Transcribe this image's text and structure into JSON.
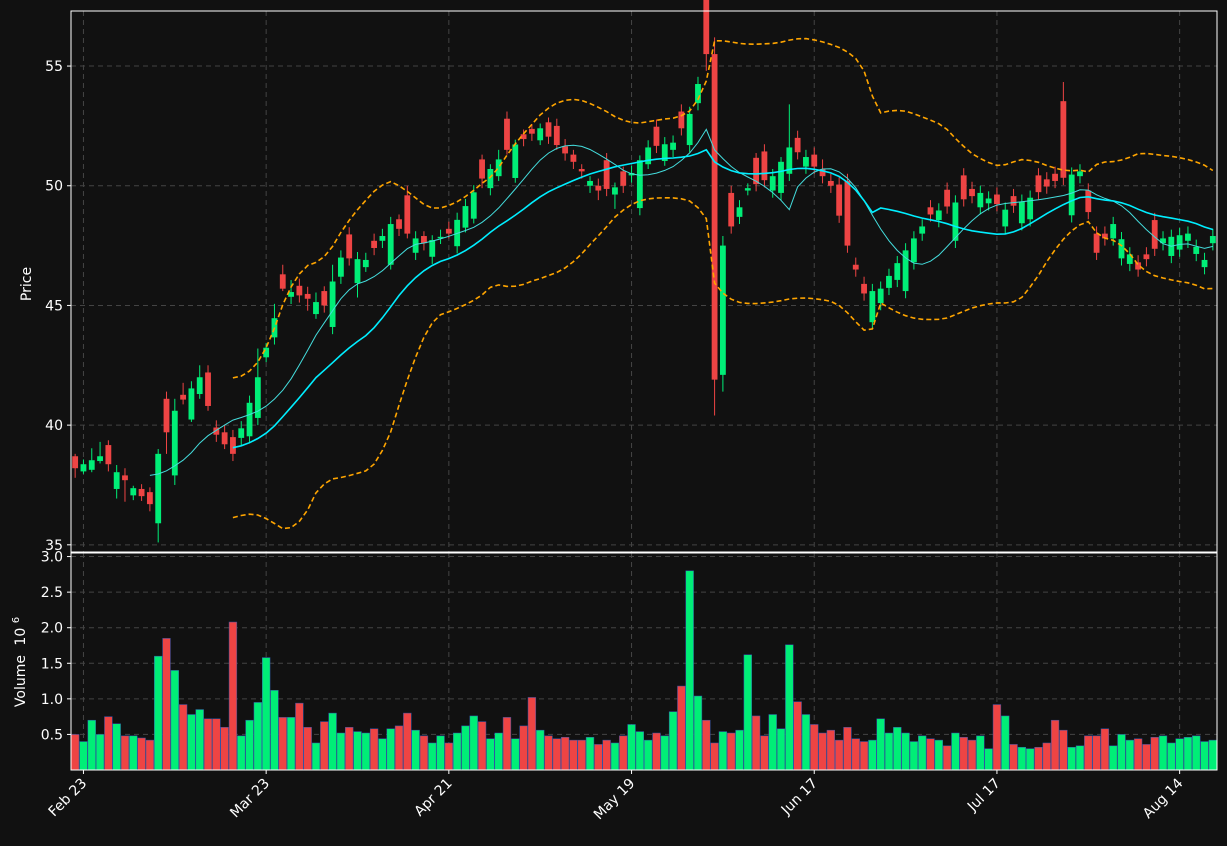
{
  "colors": {
    "background": "#111111",
    "up": "#00ee77",
    "down": "#ee4444",
    "sma_fast": "#44dddd",
    "sma_slow": "#00eeff",
    "bollinger": "#ffa500",
    "grid": "#444444",
    "text": "#ffffff"
  },
  "chart_data": [
    {
      "type": "candlestick",
      "panel": "price",
      "ylabel": "Price",
      "ylim": [
        34.7,
        57.3
      ],
      "yticks": [
        35,
        40,
        45,
        50,
        55
      ],
      "grid": true,
      "xtick_labels": [
        "Feb 23",
        "Mar 23",
        "Apr 21",
        "May 19",
        "Jun 17",
        "Jul 17",
        "Aug 14"
      ],
      "xtick_index": [
        1,
        23,
        45,
        67,
        89,
        111,
        133
      ],
      "n": 138,
      "moves": [
        [
          0.0,
          -0.5,
          0.1,
          -0.4
        ],
        [
          0.0,
          0.3,
          0.2,
          -0.1
        ],
        [
          0.2,
          0.4,
          0.5,
          -0.1
        ],
        [
          0.2,
          0.2,
          0.6,
          -0.1
        ],
        [
          0.0,
          -0.8,
          0.2,
          -0.3
        ],
        [
          -0.2,
          0.7,
          0.3,
          -0.4
        ],
        [
          -0.2,
          -0.2,
          0.3,
          -0.9
        ],
        [
          0.0,
          0.3,
          0.1,
          -0.2
        ],
        [
          0.0,
          -0.3,
          0.2,
          -0.2
        ],
        [
          -0.6,
          -0.5,
          0.2,
          -0.3
        ],
        [
          -0.2,
          2.9,
          0.2,
          -0.8
        ],
        [
          0.0,
          -1.4,
          0.3,
          -0.9
        ],
        [
          0.0,
          2.7,
          0.5,
          -0.4
        ],
        [
          0.0,
          -0.2,
          0.5,
          -0.2
        ],
        [
          0.0,
          1.3,
          0.3,
          -0.1
        ],
        [
          0.2,
          0.7,
          0.5,
          -0.2
        ],
        [
          0.0,
          -1.4,
          0.3,
          -0.2
        ],
        [
          -0.8,
          -0.3,
          0.3,
          -0.3
        ],
        [
          -0.2,
          -0.5,
          0.3,
          -0.2
        ],
        [
          0.0,
          -0.7,
          0.3,
          -0.3
        ],
        [
          0.0,
          0.4,
          0.3,
          -0.3
        ],
        [
          0.0,
          1.4,
          0.3,
          -0.3
        ],
        [
          0.0,
          1.7,
          1.2,
          -0.3
        ],
        [
          0.0,
          0.4,
          0.2,
          -0.2
        ],
        [
          0.0,
          0.8,
          0.6,
          -0.3
        ],
        [
          0.0,
          -0.6,
          0.4,
          -0.1
        ],
        [
          0.0,
          0.2,
          0.5,
          -0.3
        ],
        [
          0.0,
          -0.4,
          0.3,
          -0.3
        ],
        [
          0.0,
          -0.2,
          0.3,
          -0.5
        ],
        [
          0.0,
          0.5,
          0.4,
          -0.2
        ],
        [
          -0.2,
          -0.6,
          0.2,
          -0.3
        ],
        [
          -0.2,
          1.9,
          0.7,
          -0.3
        ],
        [
          0.0,
          0.8,
          0.3,
          -0.3
        ],
        [
          0.0,
          -1.0,
          0.3,
          -0.3
        ],
        [
          0.0,
          1.0,
          0.3,
          -0.6
        ],
        [
          0.0,
          0.3,
          0.3,
          -0.2
        ],
        [
          0.0,
          -0.3,
          0.3,
          -0.3
        ],
        [
          0.0,
          0.2,
          0.3,
          -0.3
        ],
        [
          0.0,
          1.7,
          0.3,
          -0.2
        ],
        [
          0.0,
          -0.4,
          0.2,
          -0.3
        ],
        [
          0.0,
          -1.6,
          0.4,
          -0.2
        ],
        [
          0.0,
          0.6,
          0.3,
          -0.3
        ],
        [
          0.0,
          -0.3,
          0.2,
          -0.3
        ],
        [
          0.0,
          0.7,
          0.2,
          -0.3
        ],
        [
          0.0,
          0.0,
          0.3,
          -0.3
        ],
        [
          0.0,
          -0.2,
          0.3,
          -0.2
        ],
        [
          0.0,
          1.1,
          0.3,
          -0.3
        ],
        [
          0.0,
          0.9,
          0.3,
          -0.2
        ],
        [
          0.0,
          1.1,
          0.3,
          -0.2
        ],
        [
          0.0,
          -0.8,
          0.2,
          -0.4
        ],
        [
          0.0,
          0.8,
          0.2,
          -0.3
        ],
        [
          0.0,
          0.7,
          0.4,
          -0.2
        ],
        [
          0.0,
          -1.3,
          0.3,
          -0.2
        ],
        [
          0.0,
          1.4,
          0.2,
          -0.2
        ],
        [
          0.0,
          -0.2,
          0.2,
          -0.3
        ],
        [
          0.0,
          -0.2,
          0.2,
          -0.3
        ],
        [
          0.0,
          0.5,
          0.2,
          -0.2
        ],
        [
          0.0,
          -0.6,
          0.2,
          -0.3
        ],
        [
          0.0,
          -0.8,
          0.3,
          -0.2
        ],
        [
          0.0,
          -0.3,
          0.3,
          -0.3
        ],
        [
          0.0,
          -0.3,
          0.2,
          -0.3
        ],
        [
          0.0,
          -0.1,
          0.2,
          -0.3
        ],
        [
          0.0,
          0.2,
          0.2,
          -0.3
        ],
        [
          0.0,
          -0.2,
          0.3,
          -0.4
        ],
        [
          0.0,
          -1.2,
          0.3,
          -0.3
        ],
        [
          0.0,
          0.3,
          0.2,
          -0.6
        ],
        [
          0.0,
          -0.6,
          0.2,
          -0.3
        ],
        [
          0.0,
          0.1,
          0.3,
          -0.3
        ],
        [
          0.0,
          2.0,
          0.2,
          -0.3
        ],
        [
          0.0,
          0.7,
          0.3,
          -0.2
        ],
        [
          0.0,
          -0.8,
          0.3,
          -0.3
        ],
        [
          0.0,
          0.7,
          0.3,
          -0.2
        ],
        [
          0.0,
          0.3,
          0.3,
          -0.3
        ],
        [
          0.0,
          -0.7,
          0.3,
          -0.3
        ],
        [
          0.0,
          1.3,
          0.3,
          -0.3
        ],
        [
          0.0,
          0.8,
          0.3,
          -0.3
        ],
        [
          -0.4,
          -2.6,
          1.5,
          -0.7
        ],
        [
          0.0,
          -13.6,
          0.7,
          -1.5
        ],
        [
          0.0,
          5.4,
          0.4,
          -0.7
        ],
        [
          0.0,
          -1.4,
          0.3,
          -0.3
        ],
        [
          0.0,
          0.4,
          0.3,
          -0.3
        ],
        [
          0.0,
          0.1,
          0.2,
          -0.2
        ],
        [
          0.0,
          -1.1,
          0.2,
          -0.3
        ],
        [
          0.0,
          -1.2,
          0.3,
          -0.3
        ],
        [
          0.0,
          0.6,
          0.3,
          -0.3
        ],
        [
          0.0,
          1.3,
          0.2,
          -0.3
        ],
        [
          0.0,
          1.1,
          1.8,
          -0.3
        ],
        [
          0.0,
          -0.6,
          0.3,
          -0.3
        ],
        [
          0.0,
          0.4,
          0.3,
          -0.3
        ],
        [
          0.0,
          -0.5,
          0.3,
          -0.3
        ],
        [
          0.0,
          -0.3,
          0.4,
          -0.3
        ],
        [
          0.0,
          -0.2,
          0.3,
          -0.3
        ],
        [
          0.0,
          -1.3,
          0.3,
          -0.3
        ],
        [
          0.0,
          -2.7,
          0.3,
          -0.3
        ],
        [
          0.0,
          -0.2,
          0.3,
          -0.3
        ],
        [
          0.0,
          -0.4,
          0.3,
          -0.3
        ],
        [
          0.0,
          1.3,
          0.3,
          -0.3
        ],
        [
          0.0,
          0.6,
          0.3,
          -0.3
        ],
        [
          0.0,
          0.5,
          0.3,
          -0.3
        ],
        [
          0.0,
          0.7,
          0.3,
          -0.3
        ],
        [
          0.0,
          1.7,
          0.3,
          -0.3
        ],
        [
          0.0,
          1.0,
          0.3,
          -0.3
        ],
        [
          0.0,
          0.3,
          0.3,
          -0.3
        ],
        [
          0.0,
          -0.3,
          0.3,
          -0.3
        ],
        [
          0.0,
          0.4,
          0.3,
          -0.3
        ],
        [
          0.0,
          -0.7,
          0.3,
          -0.3
        ],
        [
          0.0,
          1.6,
          0.3,
          -0.3
        ],
        [
          0.0,
          -1.0,
          0.3,
          -0.3
        ],
        [
          0.0,
          -0.3,
          0.3,
          -0.3
        ],
        [
          0.0,
          0.6,
          0.3,
          -0.3
        ],
        [
          0.0,
          0.2,
          0.3,
          -0.3
        ],
        [
          0.0,
          -0.4,
          0.3,
          -0.3
        ],
        [
          0.0,
          0.7,
          0.3,
          -0.3
        ],
        [
          0.0,
          -0.4,
          0.3,
          -0.3
        ],
        [
          0.0,
          0.9,
          0.3,
          -0.3
        ],
        [
          0.0,
          0.9,
          0.3,
          -0.3
        ],
        [
          0.0,
          -0.7,
          0.3,
          -0.3
        ],
        [
          0.0,
          -0.3,
          0.3,
          -0.3
        ],
        [
          0.0,
          -0.3,
          0.3,
          -0.3
        ],
        [
          0.0,
          -3.2,
          0.8,
          -0.3
        ],
        [
          0.0,
          1.7,
          0.3,
          -0.3
        ],
        [
          0.0,
          0.2,
          0.3,
          -0.3
        ],
        [
          0.0,
          -0.9,
          0.3,
          -0.3
        ],
        [
          0.0,
          -0.8,
          0.3,
          -0.3
        ],
        [
          0.0,
          -0.2,
          0.3,
          -0.3
        ],
        [
          0.0,
          0.6,
          0.3,
          -0.3
        ],
        [
          0.0,
          0.8,
          0.3,
          -0.3
        ],
        [
          0.0,
          0.4,
          0.3,
          -0.3
        ],
        [
          0.0,
          -0.3,
          0.3,
          -0.3
        ],
        [
          0.0,
          -0.2,
          0.3,
          -0.3
        ],
        [
          0.0,
          -1.2,
          0.3,
          -0.3
        ],
        [
          0.0,
          0.2,
          0.3,
          -0.3
        ],
        [
          0.0,
          0.8,
          0.3,
          -0.3
        ],
        [
          0.0,
          0.6,
          0.3,
          -0.3
        ]
      ],
      "volume_m": [
        0.5,
        0.4,
        0.7,
        0.5,
        0.75,
        0.65,
        0.48,
        0.48,
        0.45,
        0.42,
        1.6,
        1.85,
        1.4,
        0.92,
        0.78,
        0.85,
        0.72,
        0.72,
        0.6,
        2.08,
        0.48,
        0.7,
        0.95,
        1.58,
        1.12,
        0.74,
        0.74,
        0.94,
        0.6,
        0.38,
        0.68,
        0.8,
        0.52,
        0.6,
        0.54,
        0.52,
        0.58,
        0.44,
        0.58,
        0.62,
        0.8,
        0.56,
        0.48,
        0.38,
        0.48,
        0.38,
        0.52,
        0.62,
        0.76,
        0.68,
        0.44,
        0.52,
        0.74,
        0.44,
        0.62,
        1.02,
        0.56,
        0.48,
        0.44,
        0.46,
        0.42,
        0.42,
        0.46,
        0.36,
        0.42,
        0.38,
        0.48,
        0.64,
        0.54,
        0.42,
        0.52,
        0.48,
        0.82,
        1.18,
        2.8,
        1.04,
        0.7,
        0.38,
        0.54,
        0.52,
        0.56,
        1.62,
        0.76,
        0.48,
        0.78,
        0.58,
        1.76,
        0.96,
        0.78,
        0.64,
        0.52,
        0.56,
        0.42,
        0.6,
        0.44,
        0.4,
        0.42,
        0.72,
        0.52,
        0.6,
        0.52,
        0.4,
        0.48,
        0.44,
        0.42,
        0.34,
        0.52,
        0.46,
        0.42,
        0.48,
        0.3,
        0.92,
        0.76,
        0.36,
        0.32,
        0.3,
        0.32,
        0.38,
        0.7,
        0.56,
        0.32,
        0.34,
        0.48,
        0.48,
        0.58,
        0.34,
        0.5,
        0.42,
        0.44,
        0.36,
        0.46,
        0.48,
        0.38,
        0.44,
        0.46,
        0.48,
        0.4,
        0.42
      ],
      "anchor_closes": [
        [
          0,
          38.2
        ],
        [
          3,
          38.7
        ],
        [
          9,
          36.7
        ],
        [
          10,
          38.8
        ],
        [
          12,
          40.6
        ],
        [
          15,
          42.0
        ],
        [
          17,
          39.6
        ],
        [
          19,
          38.8
        ],
        [
          22,
          42.0
        ],
        [
          25,
          45.7
        ],
        [
          30,
          45.0
        ],
        [
          32,
          47.0
        ],
        [
          35,
          46.9
        ],
        [
          38,
          48.4
        ],
        [
          42,
          47.6
        ],
        [
          45,
          48.0
        ],
        [
          49,
          50.3
        ],
        [
          52,
          51.5
        ],
        [
          56,
          52.4
        ],
        [
          60,
          51.0
        ],
        [
          63,
          49.8
        ],
        [
          66,
          50.0
        ],
        [
          69,
          51.6
        ],
        [
          72,
          51.8
        ],
        [
          74,
          53.0
        ],
        [
          76,
          55.5
        ],
        [
          77,
          41.9
        ],
        [
          78,
          47.5
        ],
        [
          81,
          49.9
        ],
        [
          84,
          50.4
        ],
        [
          86,
          51.6
        ],
        [
          88,
          51.2
        ],
        [
          91,
          50.0
        ],
        [
          93,
          47.5
        ],
        [
          95,
          45.5
        ],
        [
          97,
          45.7
        ],
        [
          100,
          47.3
        ],
        [
          103,
          48.8
        ],
        [
          106,
          49.3
        ],
        [
          109,
          49.7
        ],
        [
          112,
          49.0
        ],
        [
          115,
          49.5
        ],
        [
          118,
          50.2
        ],
        [
          121,
          50.6
        ],
        [
          123,
          47.2
        ],
        [
          125,
          48.4
        ],
        [
          128,
          46.5
        ],
        [
          131,
          47.8
        ],
        [
          134,
          48.0
        ],
        [
          136,
          46.9
        ],
        [
          137,
          47.9
        ]
      ],
      "sma_fast_window": 10,
      "sma_slow_window": 20,
      "bollinger_window": 20,
      "bollinger_k": 2
    },
    {
      "type": "bar",
      "panel": "volume",
      "ylabel": "Volume",
      "ylabel_exponent": "10",
      "ylabel_power": "6",
      "ylim": [
        0.0,
        3.05
      ],
      "yticks": [
        0.5,
        1.0,
        1.5,
        2.0,
        2.5,
        3.0
      ],
      "ytick_labels": [
        "0.5",
        "1.0",
        "1.5",
        "2.0",
        "2.5",
        "3.0"
      ],
      "grid": true
    }
  ]
}
